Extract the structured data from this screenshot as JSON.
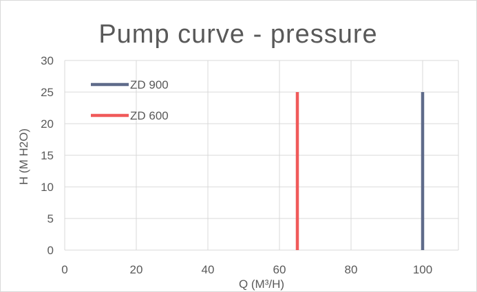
{
  "chart_data": {
    "type": "line",
    "title": "Pump curve - pressure",
    "xlabel": "Q (M³/H)",
    "ylabel": "H (M H2O)",
    "xlim": [
      0,
      110
    ],
    "ylim": [
      0,
      30
    ],
    "x_ticks": [
      "0",
      "20",
      "40",
      "60",
      "80",
      "100"
    ],
    "y_ticks": [
      "0",
      "5",
      "10",
      "15",
      "20",
      "25",
      "30"
    ],
    "grid": true,
    "legend_position": "top-left",
    "series": [
      {
        "name": "ZD 900",
        "color": "#5f6b8a",
        "x": [
          100,
          100
        ],
        "y": [
          0,
          25
        ]
      },
      {
        "name": "ZD 600",
        "color": "#f05a5a",
        "x": [
          65,
          65
        ],
        "y": [
          0,
          25
        ]
      }
    ]
  }
}
